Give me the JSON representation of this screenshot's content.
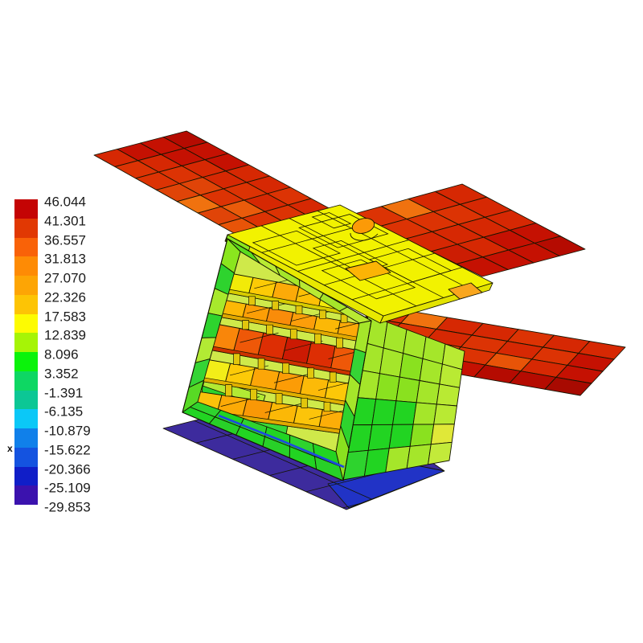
{
  "legend": {
    "values": [
      "46.044",
      "41.301",
      "36.557",
      "31.813",
      "27.070",
      "22.326",
      "17.583",
      "12.839",
      "8.096",
      "3.352",
      "-1.391",
      "-6.135",
      "-10.879",
      "-15.622",
      "-20.366",
      "-25.109",
      "-29.853"
    ],
    "colors": [
      "#c40404",
      "#e13803",
      "#f96208",
      "#fe8b05",
      "#fda505",
      "#fdc405",
      "#fdfb02",
      "#a6f406",
      "#0bf30b",
      "#0ed763",
      "#0cc795",
      "#0bc8f7",
      "#1080ea",
      "#1453e0",
      "#101ec8",
      "#3b12ae"
    ],
    "x_marker": "x"
  },
  "model": {
    "background": "#ffffff",
    "mesh_stroke": "#141400",
    "panel_left": {
      "rows": [
        [
          "#b50b01",
          "#c51102",
          "#c51102",
          "#d62803",
          "#d62803",
          "#dc3304",
          "#d62803"
        ],
        [
          "#c51102",
          "#c51102",
          "#d62803",
          "#d62803",
          "#dc3304",
          "#d62803",
          "#dc3304"
        ],
        [
          "#c51102",
          "#d62803",
          "#dc3304",
          "#e04408",
          "#dc3304",
          "#ea5b0b",
          "#dc3304"
        ],
        [
          "#d62803",
          "#dc3304",
          "#dc3304",
          "#e04408",
          "#f0720f",
          "#e04408",
          "#e85408"
        ]
      ]
    },
    "panel_upper_right": {
      "rows": [
        [
          "#d62803",
          "#d62803",
          "#d62803",
          "#c51102",
          "#b50b01"
        ],
        [
          "#d62803",
          "#dc3304",
          "#d62803",
          "#c51102",
          "#c51102"
        ],
        [
          "#f0720f",
          "#dc3304",
          "#d62803",
          "#d62803",
          "#c51102"
        ],
        [
          "#dc3304",
          "#dc3304",
          "#d62803",
          "#cc1d03",
          "#c51102"
        ]
      ]
    },
    "panel_lower_right": {
      "rows": [
        [
          "#dc3304",
          "#f0720f",
          "#d62803",
          "#d62803",
          "#dc3304",
          "#d62803",
          "#d62803"
        ],
        [
          "#d62803",
          "#dc3304",
          "#d62803",
          "#dc3304",
          "#d62803",
          "#dc3304",
          "#c51102"
        ],
        [
          "#dc3304",
          "#d62803",
          "#e04408",
          "#dc3304",
          "#e85408",
          "#d62803",
          "#c51102"
        ],
        [
          "#b50b01",
          "#c51102",
          "#b50b01",
          "#c51102",
          "#b50b01",
          "#b50b01",
          "#a80a01"
        ]
      ]
    },
    "right_face": {
      "rows": [
        [
          "#a5e62a",
          "#a5e62a",
          "#a5e62a",
          "#a5e62a",
          "#b9ea33"
        ],
        [
          "#a5e62a",
          "#a5e62a",
          "#8ae11f",
          "#a5e62a",
          "#b9ea33"
        ],
        [
          "#a5e62a",
          "#8ae11f",
          "#8ae11f",
          "#a5e62a",
          "#b9ea33"
        ],
        [
          "#22d422",
          "#22d422",
          "#22d422",
          "#a5e62a",
          "#b9ea33"
        ],
        [
          "#22d422",
          "#22d422",
          "#22d422",
          "#8ae11f",
          "#e0e838"
        ],
        [
          "#2ed32e",
          "#22d422",
          "#a5e62a",
          "#a5e62a",
          "#c3ea3a"
        ]
      ]
    },
    "top_face": {
      "base": "#f2f200",
      "edge_band": "#e8e800",
      "edge_band_right": "#e3e300",
      "corner_cell": "#8ae61e",
      "ellipse": "#fc9a07",
      "patch_center": "#fcb405",
      "patch_right": "#f9a61e"
    },
    "frame": {
      "top_rail": [
        "#5bdc1e",
        "#b9ea33",
        "#a5e62a",
        "#b9ea33",
        "#a5e62a",
        "#b9ea33"
      ],
      "left_pillar": [
        "#8ae61e",
        "#2ed32e",
        "#a8e92c",
        "#2ed32e",
        "#b2ea34",
        "#35d435",
        "#58da25"
      ],
      "right_pillar": [
        "#a5e62a",
        "#35d435",
        "#a5e62a",
        "#2ed32e",
        "#8ae11f"
      ],
      "bottom_rail": [
        [
          "#2ed32e",
          "#22d422",
          "#2ed32e",
          "#22d422",
          "#2ed32e",
          "#22d422"
        ],
        [
          "#22d422",
          "#28d028",
          "#22d422",
          "#28d028",
          "#22d422",
          "#28d028"
        ]
      ]
    },
    "interior": {
      "base": "#cfe94a",
      "green_block_1": "#2ed32e",
      "green_block_2": "#38d838",
      "green_strip": "#b2ea34",
      "standoff": "#e2c60c"
    },
    "shelves": [
      {
        "cells": [
          "#f2ea08",
          "#fcca06",
          "#fcaa08",
          "#fcc006",
          "#f2ea0a",
          "#fcc20a"
        ],
        "edge": "#d8cc00"
      },
      {
        "cells": [
          "#fcb806",
          "#fc9e06",
          "#f98c0a",
          "#fc9e0a",
          "#fcb806",
          "#fcaa08"
        ],
        "edge": "#e0a800"
      },
      {
        "cells": [
          "#f9860a",
          "#ee5808",
          "#dd2e04",
          "#cc1a03",
          "#dd2e04",
          "#ee5808"
        ],
        "edge": "#cc3300"
      },
      {
        "cells": [
          "#f2ee18",
          "#fcca08",
          "#fca608",
          "#fc9c06",
          "#fcba08",
          "#fcc808"
        ],
        "edge": "#e0b000"
      },
      {
        "cells": [
          "#fcc20a",
          "#fcaa06",
          "#f99806",
          "#fcb806",
          "#fcc40a",
          "#fcae08"
        ],
        "edge": "#e0a800"
      }
    ],
    "rod": "#1e49e0",
    "plate": {
      "main": "#3d2b9d",
      "bright": "#2133c6"
    }
  }
}
